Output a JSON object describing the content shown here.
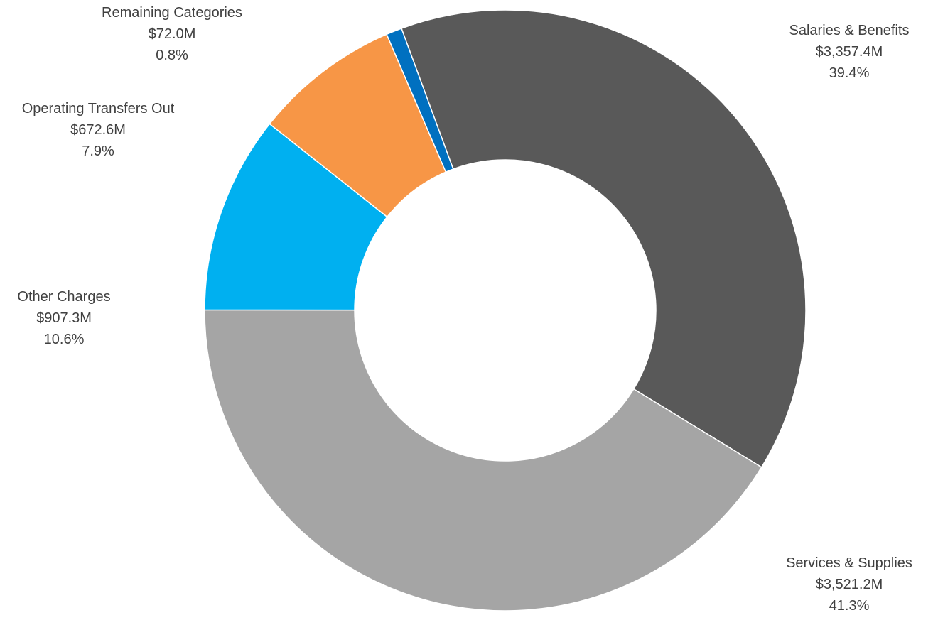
{
  "chart_data": {
    "type": "pie",
    "style": "donut",
    "start_angle_deg": 339.8,
    "direction": "clockwise",
    "slices": [
      {
        "name": "Salaries & Benefits",
        "value_label": "$3,357.4M",
        "percent_label": "39.4%",
        "value": 3357.4,
        "color": "#595959"
      },
      {
        "name": "Services & Supplies",
        "value_label": "$3,521.2M",
        "percent_label": "41.3%",
        "value": 3521.2,
        "color": "#a5a5a5"
      },
      {
        "name": "Other Charges",
        "value_label": "$907.3M",
        "percent_label": "10.6%",
        "value": 907.3,
        "color": "#00b0f0"
      },
      {
        "name": "Operating Transfers Out",
        "value_label": "$672.6M",
        "percent_label": "7.9%",
        "value": 672.6,
        "color": "#f79646"
      },
      {
        "name": "Remaining Categories",
        "value_label": "$72.0M",
        "percent_label": "0.8%",
        "value": 72.0,
        "color": "#0070c0"
      }
    ]
  }
}
